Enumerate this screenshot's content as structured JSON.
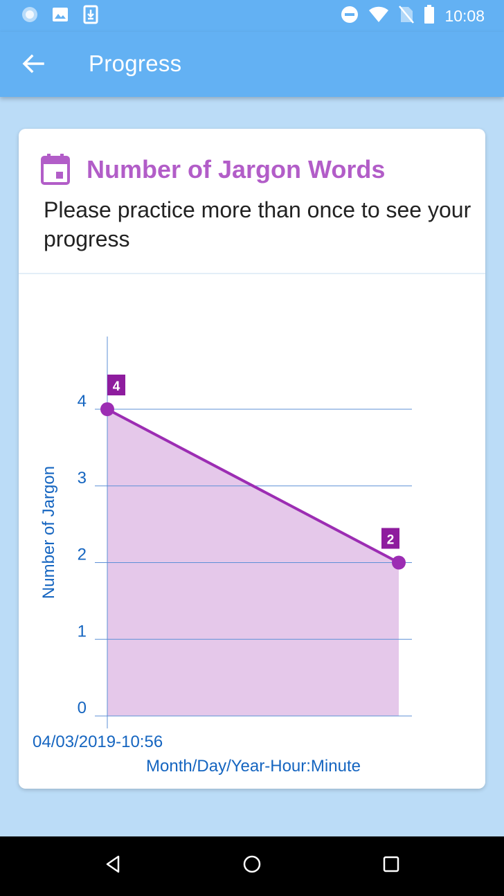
{
  "status_bar": {
    "time": "10:08",
    "left_icons": [
      "sync-icon",
      "image-icon",
      "download-icon"
    ],
    "right_icons": [
      "do-not-disturb-icon",
      "wifi-icon",
      "no-sim-icon",
      "battery-icon"
    ]
  },
  "app_bar": {
    "title": "Progress",
    "back_icon": "arrow-back-icon"
  },
  "card": {
    "icon": "calendar-icon",
    "title": "Number of Jargon Words",
    "subtitle": "Please practice more than once to see your progress"
  },
  "chart_data": {
    "type": "area",
    "x": [
      "04/03/2019-10:56",
      ""
    ],
    "x_tick_labels": [
      "04/03/2019-10:56"
    ],
    "values": [
      4,
      2
    ],
    "data_labels": [
      "4",
      "2"
    ],
    "xlabel": "Month/Day/Year-Hour:Minute",
    "ylabel": "Number of Jargon",
    "ylim": [
      0,
      4
    ],
    "y_ticks": [
      "0",
      "1",
      "2",
      "3",
      "4"
    ],
    "grid": true,
    "colors": {
      "line": "#9c2db3",
      "fill": "#e5c8ea",
      "label_bg": "#8e1c9e",
      "axis": "#1565c0",
      "gridline": "#5c8fd6"
    }
  },
  "colors": {
    "primary": "#63b1f3",
    "background": "#bbdcf7",
    "accent": "#b25dc8"
  },
  "nav_bar": {
    "buttons": [
      "back-triangle-icon",
      "home-circle-icon",
      "recents-square-icon"
    ]
  }
}
